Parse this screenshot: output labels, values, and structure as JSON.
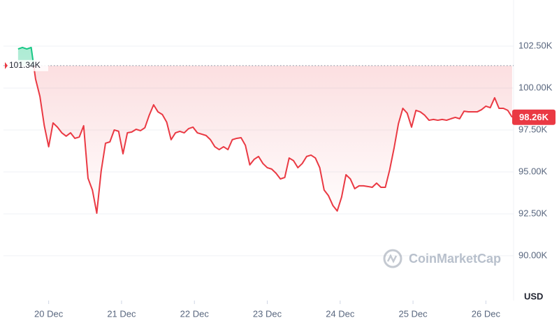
{
  "chart_data": {
    "type": "line",
    "x": [
      19.58,
      19.64,
      19.7,
      19.76,
      19.82,
      19.88,
      19.94,
      20,
      20.06,
      20.12,
      20.18,
      20.24,
      20.3,
      20.36,
      20.42,
      20.48,
      20.54,
      20.6,
      20.66,
      20.72,
      20.78,
      20.84,
      20.9,
      20.96,
      21.02,
      21.08,
      21.14,
      21.2,
      21.26,
      21.32,
      21.38,
      21.44,
      21.5,
      21.56,
      21.62,
      21.68,
      21.74,
      21.8,
      21.86,
      21.92,
      21.98,
      22.04,
      22.1,
      22.16,
      22.22,
      22.28,
      22.34,
      22.4,
      22.46,
      22.52,
      22.58,
      22.64,
      22.7,
      22.76,
      22.82,
      22.88,
      22.94,
      23,
      23.06,
      23.12,
      23.18,
      23.24,
      23.3,
      23.36,
      23.42,
      23.48,
      23.54,
      23.6,
      23.66,
      23.72,
      23.78,
      23.84,
      23.9,
      23.96,
      24.02,
      24.08,
      24.14,
      24.2,
      24.26,
      24.32,
      24.38,
      24.44,
      24.5,
      24.56,
      24.62,
      24.68,
      24.74,
      24.8,
      24.86,
      24.92,
      24.98,
      25.04,
      25.1,
      25.16,
      25.22,
      25.28,
      25.34,
      25.4,
      25.46,
      25.52,
      25.58,
      25.64,
      25.7,
      25.76,
      25.82,
      25.88,
      25.94,
      26,
      26.06,
      26.12,
      26.18,
      26.24,
      26.3,
      26.36
    ],
    "values": [
      102330,
      102420,
      102330,
      102420,
      100540,
      99500,
      97750,
      96500,
      97920,
      97670,
      97330,
      97130,
      97330,
      97000,
      97080,
      97750,
      94620,
      93920,
      92540,
      95040,
      96710,
      96790,
      97500,
      97420,
      96080,
      97330,
      97380,
      97540,
      97460,
      97630,
      98380,
      99000,
      98580,
      98420,
      97960,
      96920,
      97330,
      97420,
      97330,
      97580,
      97670,
      97330,
      97250,
      97170,
      96920,
      96500,
      96330,
      96500,
      96330,
      96920,
      97000,
      97040,
      96580,
      95420,
      95750,
      95920,
      95500,
      95250,
      95170,
      94920,
      94580,
      94670,
      95830,
      95670,
      95250,
      95500,
      95920,
      96000,
      95830,
      95250,
      93920,
      93580,
      93000,
      92670,
      93500,
      94830,
      94580,
      94000,
      94170,
      94170,
      94130,
      94080,
      94330,
      94080,
      94080,
      95130,
      96420,
      97880,
      98790,
      98500,
      97670,
      98670,
      98580,
      98380,
      98080,
      98130,
      98080,
      98130,
      98080,
      98170,
      98250,
      98170,
      98620,
      98580,
      98580,
      98580,
      98710,
      98920,
      98830,
      99420,
      98790,
      98790,
      98670,
      98260
    ],
    "up_color": "#16c784",
    "down_color": "#ea3943",
    "xlim": [
      19.38,
      26.38
    ],
    "xticks": [
      {
        "value": 20,
        "label": "20 Dec"
      },
      {
        "value": 21,
        "label": "21 Dec"
      },
      {
        "value": 22,
        "label": "22 Dec"
      },
      {
        "value": 23,
        "label": "23 Dec"
      },
      {
        "value": 24,
        "label": "24 Dec"
      },
      {
        "value": 25,
        "label": "25 Dec"
      },
      {
        "value": 26,
        "label": "26 Dec"
      }
    ],
    "ylim": [
      87330,
      105250
    ],
    "yticks": [
      {
        "value": 90000,
        "label": "90.00K"
      },
      {
        "value": 92500,
        "label": "92.50K"
      },
      {
        "value": 95000,
        "label": "95.00K"
      },
      {
        "value": 97500,
        "label": "97.50K"
      },
      {
        "value": 100000,
        "label": "100.00K"
      },
      {
        "value": 102500,
        "label": "102.50K"
      }
    ],
    "grid": true,
    "reference": {
      "value": 101340,
      "label": "101.34K"
    },
    "current_price": {
      "value": 98260,
      "label": "98.26K"
    },
    "unit_label": "USD",
    "watermark": "CoinMarketCap"
  }
}
